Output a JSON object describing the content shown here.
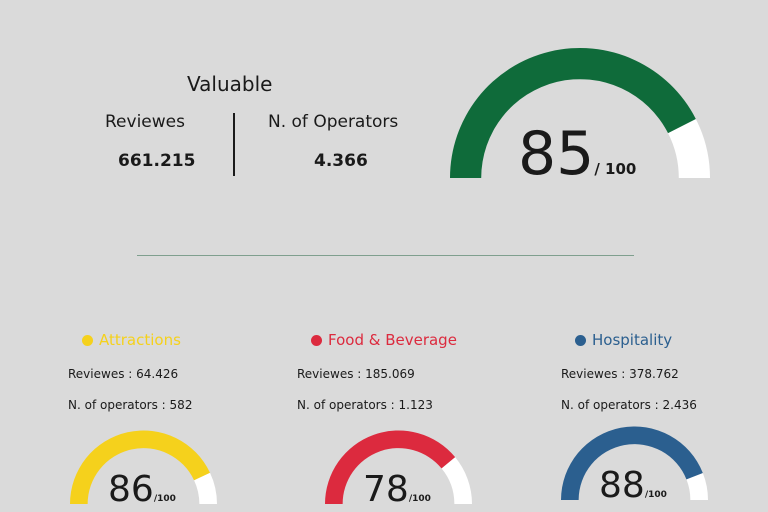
{
  "summary": {
    "title": "Valuable",
    "reviews_label": "Reviewes",
    "reviews_value": "661.215",
    "operators_label": "N. of Operators",
    "operators_value": "4.366",
    "score": "85",
    "score_suffix": "/ 100",
    "score_fraction": 0.85,
    "gauge_color": "#0f6b3a"
  },
  "categories": [
    {
      "name": "Attractions",
      "color": "#f5d11c",
      "reviews_label": "Reviewes :",
      "reviews_value": "64.426",
      "operators_label": "N. of operators :",
      "operators_value": "582",
      "score": "86",
      "score_suffix": "/100",
      "score_fraction": 0.86
    },
    {
      "name": "Food & Beverage",
      "color": "#dc2a3e",
      "reviews_label": "Reviewes :",
      "reviews_value": "185.069",
      "operators_label": "N. of operators :",
      "operators_value": "1.123",
      "score": "78",
      "score_suffix": "/100",
      "score_fraction": 0.78
    },
    {
      "name": "Hospitality",
      "color": "#2b5f8f",
      "reviews_label": "Reviewes :",
      "reviews_value": "378.762",
      "operators_label": "N. of operators :",
      "operators_value": "2.436",
      "score": "88",
      "score_suffix": "/100",
      "score_fraction": 0.88
    }
  ]
}
